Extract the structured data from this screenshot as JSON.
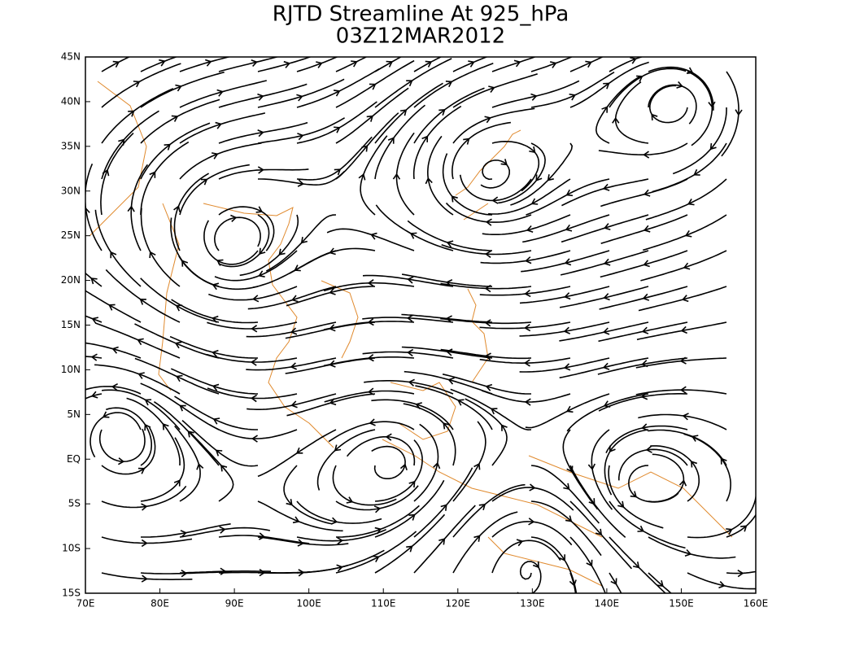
{
  "map": {
    "title": "RJTD Streamline At 925_hPa",
    "subtitle": "03Z12MAR2012",
    "xlim": [
      70,
      160
    ],
    "ylim": [
      -15,
      45
    ],
    "xticks": [
      {
        "value": 70,
        "label": "70E"
      },
      {
        "value": 80,
        "label": "80E"
      },
      {
        "value": 90,
        "label": "90E"
      },
      {
        "value": 100,
        "label": "100E"
      },
      {
        "value": 110,
        "label": "110E"
      },
      {
        "value": 120,
        "label": "120E"
      },
      {
        "value": 130,
        "label": "130E"
      },
      {
        "value": 140,
        "label": "140E"
      },
      {
        "value": 150,
        "label": "150E"
      },
      {
        "value": 160,
        "label": "160E"
      }
    ],
    "yticks": [
      {
        "value": 45,
        "label": "45N"
      },
      {
        "value": 40,
        "label": "40N"
      },
      {
        "value": 35,
        "label": "35N"
      },
      {
        "value": 30,
        "label": "30N"
      },
      {
        "value": 25,
        "label": "25N"
      },
      {
        "value": 20,
        "label": "20N"
      },
      {
        "value": 15,
        "label": "15N"
      },
      {
        "value": 10,
        "label": "10N"
      },
      {
        "value": 5,
        "label": "5N"
      },
      {
        "value": 0,
        "label": "EQ"
      },
      {
        "value": -5,
        "label": "5S"
      },
      {
        "value": -10,
        "label": "10S"
      },
      {
        "value": -15,
        "label": "15S"
      }
    ]
  }
}
